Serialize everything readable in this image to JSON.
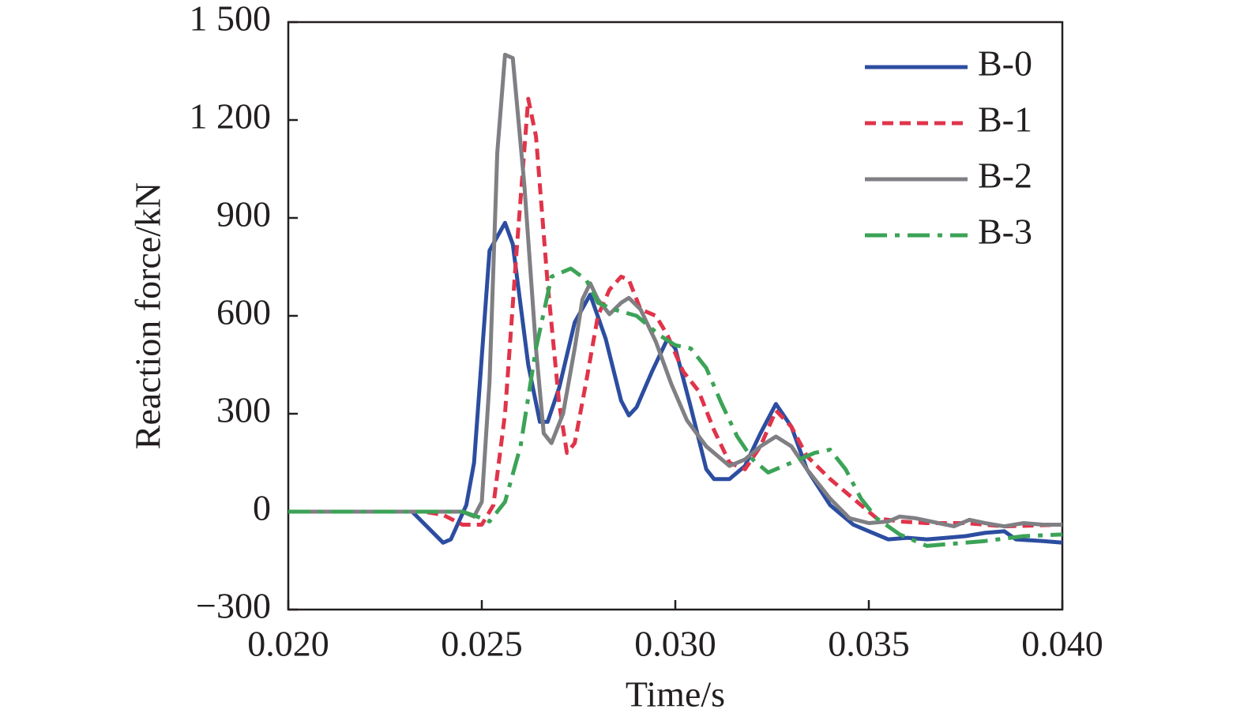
{
  "chart_data": {
    "type": "line",
    "x_label": "Time/s",
    "y_label": "Reaction force/kN",
    "xlim": [
      0.02,
      0.04
    ],
    "xticks": [
      {
        "value": 0.02,
        "label": "0.020"
      },
      {
        "value": 0.025,
        "label": "0.025"
      },
      {
        "value": 0.03,
        "label": "0.030"
      },
      {
        "value": 0.035,
        "label": "0.035"
      },
      {
        "value": 0.04,
        "label": "0.040"
      }
    ],
    "ylim": [
      -300,
      1500
    ],
    "yticks": [
      {
        "value": -300,
        "label": "−300"
      },
      0,
      300,
      600,
      900,
      {
        "value": 1200,
        "label": "1 200"
      },
      {
        "value": 1500,
        "label": "1 500"
      }
    ],
    "grid": false,
    "legend": "upper right",
    "series": [
      {
        "name": "B-0",
        "color": "#2c4da0",
        "dash": "solid",
        "x": [
          0.02,
          0.0232,
          0.024,
          0.0242,
          0.0246,
          0.0248,
          0.0252,
          0.0256,
          0.0258,
          0.0262,
          0.0265,
          0.0267,
          0.027,
          0.0274,
          0.0278,
          0.0282,
          0.0286,
          0.0288,
          0.029,
          0.0294,
          0.0298,
          0.03,
          0.0304,
          0.0308,
          0.031,
          0.0314,
          0.0318,
          0.0322,
          0.0326,
          0.033,
          0.0334,
          0.034,
          0.0346,
          0.035,
          0.0355,
          0.036,
          0.0365,
          0.037,
          0.0375,
          0.038,
          0.0385,
          0.0388,
          0.0395,
          0.04
        ],
        "values": [
          0,
          0,
          -95,
          -85,
          20,
          150,
          800,
          885,
          820,
          450,
          275,
          275,
          380,
          580,
          665,
          530,
          340,
          295,
          320,
          430,
          530,
          500,
          320,
          130,
          100,
          100,
          140,
          240,
          330,
          260,
          130,
          20,
          -40,
          -60,
          -85,
          -80,
          -85,
          -80,
          -75,
          -65,
          -60,
          -85,
          -90,
          -95
        ]
      },
      {
        "name": "B-1",
        "color": "#e0344a",
        "dash": "dashed",
        "x": [
          0.02,
          0.0235,
          0.024,
          0.0245,
          0.025,
          0.0253,
          0.0256,
          0.0259,
          0.0262,
          0.0264,
          0.0267,
          0.027,
          0.0272,
          0.0274,
          0.0277,
          0.028,
          0.0283,
          0.0286,
          0.0288,
          0.0291,
          0.0295,
          0.0298,
          0.0302,
          0.0306,
          0.031,
          0.0314,
          0.0318,
          0.0322,
          0.0326,
          0.033,
          0.0334,
          0.034,
          0.0346,
          0.0352,
          0.0358,
          0.0365,
          0.0375,
          0.0385,
          0.04
        ],
        "values": [
          0,
          0,
          -10,
          -40,
          -40,
          20,
          300,
          800,
          1265,
          1150,
          700,
          330,
          180,
          210,
          400,
          600,
          680,
          720,
          710,
          620,
          600,
          540,
          430,
          370,
          250,
          150,
          130,
          200,
          310,
          260,
          170,
          100,
          40,
          -20,
          -30,
          -35,
          -35,
          -45,
          -40
        ]
      },
      {
        "name": "B-2",
        "color": "#7f7f84",
        "dash": "solid",
        "x": [
          0.02,
          0.0245,
          0.0248,
          0.025,
          0.0252,
          0.0254,
          0.0256,
          0.0258,
          0.0261,
          0.0264,
          0.0266,
          0.0268,
          0.0271,
          0.0274,
          0.0276,
          0.0278,
          0.028,
          0.0283,
          0.0286,
          0.0288,
          0.0291,
          0.0295,
          0.0299,
          0.0303,
          0.0308,
          0.0314,
          0.0318,
          0.0322,
          0.0326,
          0.033,
          0.0334,
          0.034,
          0.0345,
          0.035,
          0.0355,
          0.0358,
          0.0362,
          0.0368,
          0.0372,
          0.0376,
          0.038,
          0.0385,
          0.039,
          0.0395,
          0.04
        ],
        "values": [
          0,
          0,
          -15,
          30,
          400,
          1100,
          1400,
          1390,
          1000,
          500,
          240,
          210,
          300,
          500,
          650,
          700,
          650,
          605,
          640,
          655,
          620,
          520,
          390,
          280,
          200,
          140,
          160,
          200,
          230,
          200,
          130,
          40,
          -20,
          -35,
          -30,
          -15,
          -20,
          -35,
          -45,
          -25,
          -35,
          -45,
          -35,
          -40,
          -40
        ]
      },
      {
        "name": "B-3",
        "color": "#3ca357",
        "dash": "dashdot",
        "x": [
          0.02,
          0.0245,
          0.025,
          0.0252,
          0.0256,
          0.026,
          0.0264,
          0.0268,
          0.0273,
          0.0277,
          0.028,
          0.0284,
          0.029,
          0.0296,
          0.03,
          0.0304,
          0.0308,
          0.0312,
          0.0316,
          0.032,
          0.0324,
          0.0328,
          0.0332,
          0.0336,
          0.034,
          0.0344,
          0.0348,
          0.0352,
          0.0358,
          0.0365,
          0.037,
          0.038,
          0.039,
          0.04
        ],
        "values": [
          0,
          0,
          -20,
          -30,
          30,
          200,
          500,
          720,
          745,
          710,
          640,
          620,
          600,
          540,
          510,
          500,
          440,
          330,
          230,
          160,
          120,
          140,
          160,
          180,
          190,
          130,
          40,
          -20,
          -70,
          -105,
          -100,
          -90,
          -75,
          -70
        ]
      }
    ]
  }
}
